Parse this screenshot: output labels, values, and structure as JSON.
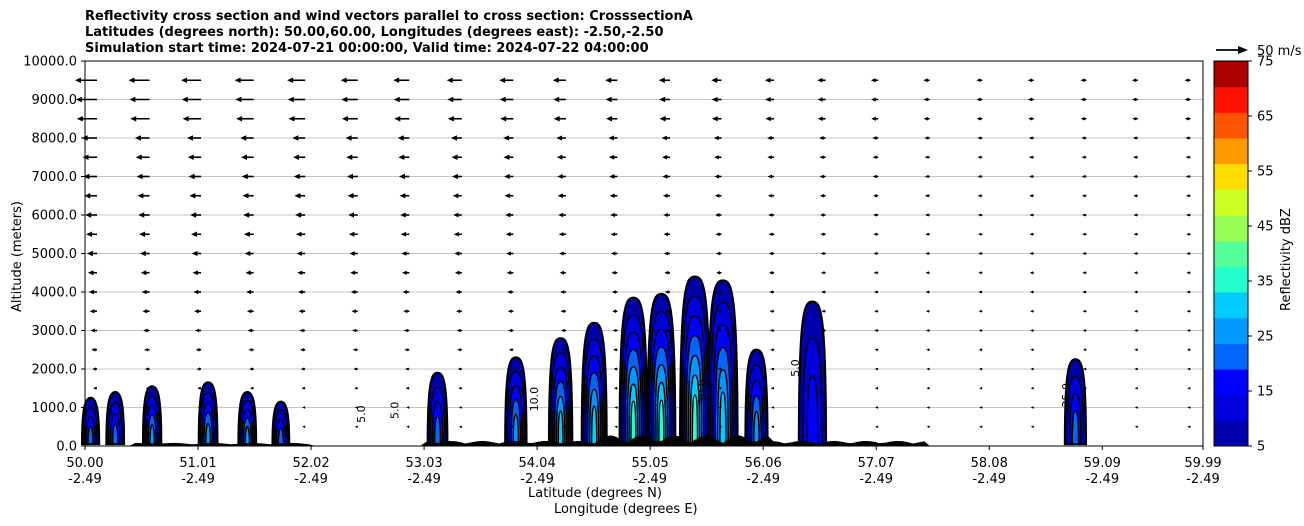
{
  "title_lines": [
    "Reflectivity cross section and wind vectors parallel to cross section: CrosssectionA",
    "Latitudes (degrees north): 50.00,60.00, Longitudes (degrees east): -2.50,-2.50",
    "Simulation start time: 2024-07-21 00:00:00, Valid time: 2024-07-22 04:00:00"
  ],
  "chart_data": {
    "type": "heatmap",
    "ylabel": "Altitude (meters)",
    "xlabel_lat": "Latitude (degrees N)",
    "xlabel_lon": "Longitude (degrees E)",
    "xlim": [
      50.0,
      59.99
    ],
    "ylim": [
      0,
      10000
    ],
    "grid": "horizontal",
    "y_ticks": [
      "0.0",
      "1000.0",
      "2000.0",
      "3000.0",
      "4000.0",
      "5000.0",
      "6000.0",
      "7000.0",
      "8000.0",
      "9000.0",
      "10000.0"
    ],
    "x_ticks_lat": [
      "50.00",
      "51.01",
      "52.02",
      "53.03",
      "54.04",
      "55.05",
      "56.06",
      "57.07",
      "58.08",
      "59.09",
      "59.99"
    ],
    "x_ticks_lon": [
      "-2.49",
      "-2.49",
      "-2.49",
      "-2.49",
      "-2.49",
      "-2.49",
      "-2.49",
      "-2.49",
      "-2.49",
      "-2.49",
      "-2.49"
    ],
    "quiver_key_label": "50 m/s",
    "colorbar": {
      "label": "Reflectivity dBZ",
      "ticks": [
        "5",
        "15",
        "25",
        "35",
        "45",
        "55",
        "65",
        "75"
      ],
      "levels": [
        5,
        10,
        15,
        20,
        25,
        30,
        35,
        40,
        45,
        50,
        55,
        60,
        65,
        70,
        75
      ],
      "colors": [
        "#0000aa",
        "#0000dd",
        "#0000ff",
        "#0066ff",
        "#0099ff",
        "#00ccff",
        "#22ffcc",
        "#55ff99",
        "#99ff55",
        "#ccff22",
        "#ffdd00",
        "#ff9900",
        "#ff5500",
        "#ff1100",
        "#aa0000"
      ]
    },
    "cells": [
      {
        "lat": 50.05,
        "top": 1250,
        "max_level": 3
      },
      {
        "lat": 50.27,
        "top": 1400,
        "max_level": 3
      },
      {
        "lat": 50.6,
        "top": 1550,
        "max_level": 4
      },
      {
        "lat": 51.1,
        "top": 1650,
        "max_level": 4
      },
      {
        "lat": 51.45,
        "top": 1400,
        "max_level": 4
      },
      {
        "lat": 51.75,
        "top": 1150,
        "max_level": 3
      },
      {
        "lat": 53.15,
        "top": 1900,
        "max_level": 3
      },
      {
        "lat": 53.85,
        "top": 2300,
        "max_level": 4
      },
      {
        "lat": 54.25,
        "top": 2800,
        "max_level": 5
      },
      {
        "lat": 54.55,
        "top": 3200,
        "max_level": 5
      },
      {
        "lat": 54.9,
        "top": 3850,
        "max_level": 6
      },
      {
        "lat": 55.15,
        "top": 3950,
        "max_level": 6
      },
      {
        "lat": 55.45,
        "top": 4400,
        "max_level": 6
      },
      {
        "lat": 55.7,
        "top": 4300,
        "max_level": 5
      },
      {
        "lat": 56.0,
        "top": 2500,
        "max_level": 4
      },
      {
        "lat": 56.5,
        "top": 3750,
        "max_level": 2
      },
      {
        "lat": 58.85,
        "top": 2250,
        "max_level": 3
      }
    ],
    "contour_labels": [
      {
        "lat": 52.5,
        "alt": 600,
        "text": "5.0"
      },
      {
        "lat": 52.8,
        "alt": 700,
        "text": "5.0"
      },
      {
        "lat": 56.38,
        "alt": 1800,
        "text": "5.0"
      },
      {
        "lat": 54.05,
        "alt": 900,
        "text": "10.0"
      },
      {
        "lat": 55.55,
        "alt": 1100,
        "text": "30.0"
      },
      {
        "lat": 58.8,
        "alt": 1000,
        "text": "25.0"
      }
    ],
    "wind": {
      "rows_alt": [
        9500,
        9000,
        8500,
        8000,
        7500,
        7000,
        6500,
        6000,
        5500,
        5000,
        4500,
        4000,
        3500,
        3000,
        2500,
        2000,
        1500,
        1000,
        500
      ],
      "cols_lat": [
        50.0,
        50.47,
        50.93,
        51.4,
        51.86,
        52.33,
        52.79,
        53.26,
        53.72,
        54.19,
        54.65,
        55.12,
        55.58,
        56.05,
        56.51,
        56.98,
        57.44,
        57.91,
        58.37,
        58.84,
        59.3,
        59.77
      ],
      "max_speed_upper": 18,
      "note": ""
    }
  }
}
